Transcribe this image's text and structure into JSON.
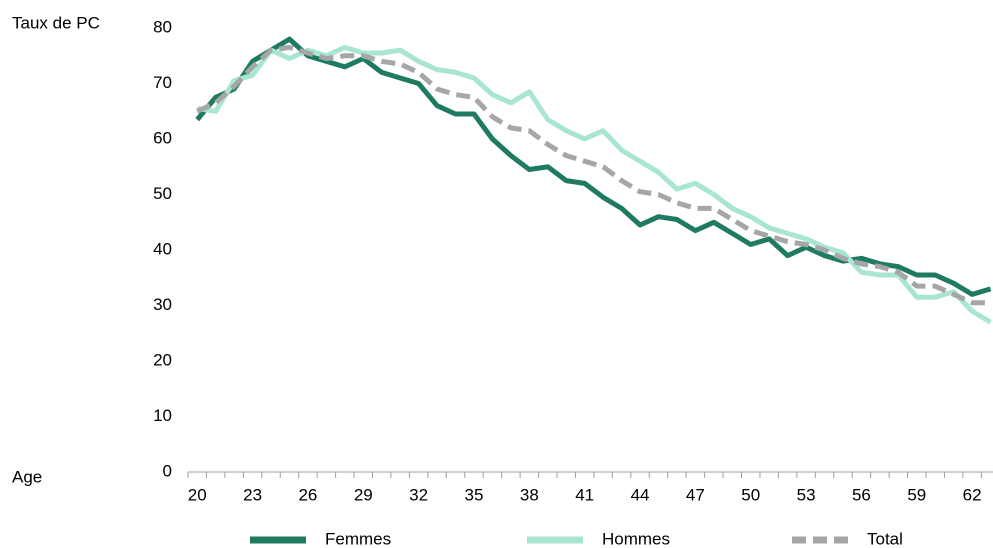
{
  "chart_data": {
    "type": "line",
    "y_label": "Taux de PC",
    "x_label": "Age",
    "categories": [
      20,
      null,
      null,
      23,
      null,
      null,
      26,
      null,
      null,
      29,
      null,
      null,
      32,
      null,
      null,
      35,
      null,
      null,
      38,
      null,
      null,
      41,
      null,
      null,
      44,
      null,
      null,
      47,
      null,
      null,
      50,
      null,
      null,
      53,
      null,
      null,
      56,
      null,
      null,
      59,
      null,
      null,
      62,
      null
    ],
    "series": [
      {
        "name": "Femmes",
        "color": "#1e7b62",
        "dashed": false,
        "values": [
          63.5,
          67.5,
          69,
          74,
          76,
          78,
          75,
          74,
          73,
          74.5,
          72,
          71,
          70,
          66,
          64.5,
          64.5,
          60,
          57,
          54.5,
          55,
          52.5,
          52,
          49.5,
          47.5,
          44.5,
          46,
          45.5,
          43.5,
          45,
          43,
          41,
          42,
          39,
          40.5,
          39,
          38,
          38.5,
          37.5,
          37,
          35.5,
          35.5,
          34,
          32,
          33
        ]
      },
      {
        "name": "Hommes",
        "color": "#a8e6d2",
        "dashed": false,
        "values": [
          65.5,
          65,
          70.5,
          71.5,
          76,
          74.5,
          76,
          75,
          76.5,
          75.5,
          75.5,
          76,
          74,
          72.5,
          72,
          71,
          68,
          66.5,
          68.5,
          63.5,
          61.5,
          60,
          61.5,
          58,
          56,
          54,
          51,
          52,
          50,
          47.5,
          46,
          44,
          43,
          42,
          40.5,
          39.5,
          36,
          35.5,
          35.5,
          31.5,
          31.5,
          32.5,
          29,
          27
        ]
      },
      {
        "name": "Total",
        "color": "#a6a6a6",
        "dashed": true,
        "values": [
          65,
          66.5,
          69.5,
          73,
          76,
          76.5,
          75.5,
          74.5,
          75,
          75,
          74,
          73.5,
          72,
          69,
          68,
          67.5,
          64,
          62,
          61.5,
          59,
          57,
          56,
          55,
          52.5,
          50.5,
          50,
          48.5,
          47.5,
          47.5,
          45.5,
          43.5,
          42.5,
          41.5,
          41,
          40,
          38.5,
          37.5,
          37,
          36,
          33.5,
          33.5,
          32,
          30.5,
          30.5
        ]
      }
    ],
    "ylim": [
      0,
      80
    ],
    "yticks": [
      0,
      10,
      20,
      30,
      40,
      50,
      60,
      70,
      80
    ],
    "grid": false
  }
}
